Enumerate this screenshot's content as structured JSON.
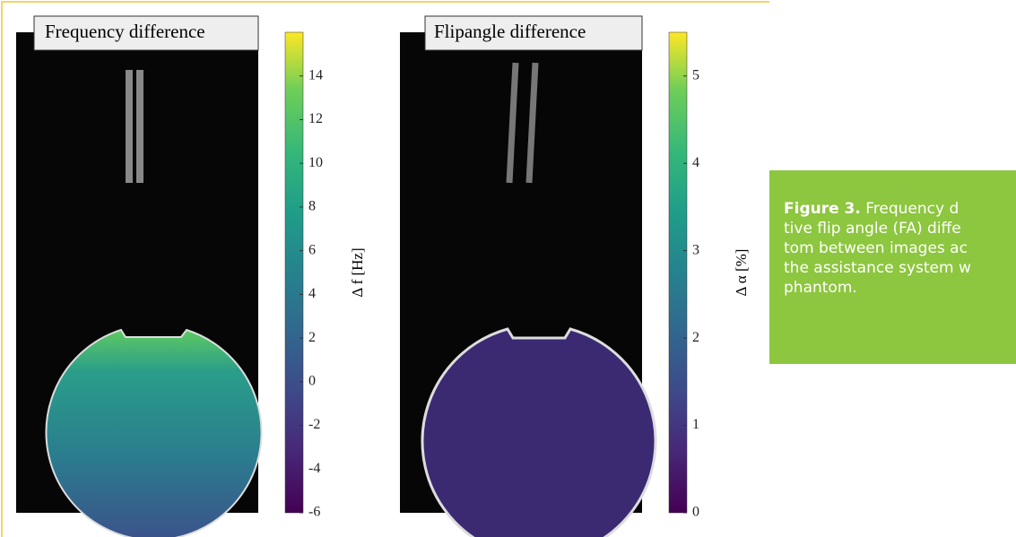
{
  "figure": {
    "panels": [
      {
        "title": "Frequency difference",
        "colorbar": {
          "label": "Δ f [Hz]",
          "ylim": [
            -6,
            16
          ],
          "yticks": [
            -6,
            -4,
            -2,
            0,
            2,
            4,
            6,
            8,
            10,
            12,
            14
          ]
        }
      },
      {
        "title": "Flipangle difference",
        "colorbar": {
          "label": "Δ α [%]",
          "ylim": [
            0,
            5.5
          ],
          "yticks": [
            0,
            1,
            2,
            3,
            4,
            5
          ]
        }
      }
    ],
    "caption": {
      "label": "Figure 3.",
      "lines": [
        "Frequency d",
        "tive flip angle (FA) diffe",
        "tom between images ac",
        "the assistance system w",
        "phantom."
      ]
    }
  }
}
